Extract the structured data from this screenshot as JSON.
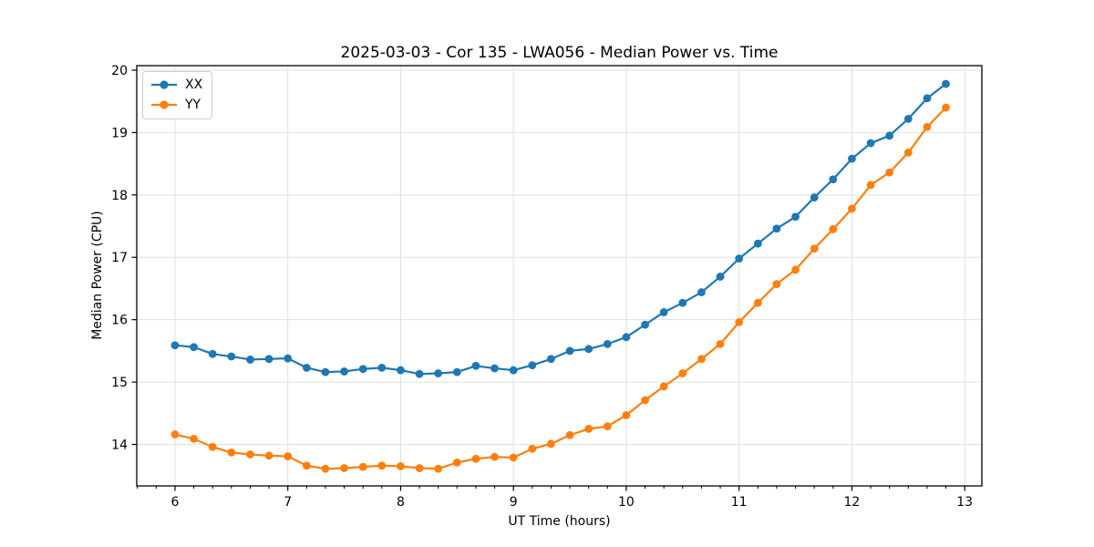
{
  "figure": {
    "title": "2025-03-03 - Cor 135 - LWA056 - Median Power vs. Time",
    "xlabel": "UT Time (hours)",
    "ylabel": "Median Power (CPU)"
  },
  "legend": {
    "position": "upper-left",
    "items": [
      {
        "label": "XX",
        "color": "#1f77b4"
      },
      {
        "label": "YY",
        "color": "#ff7f0e"
      }
    ]
  },
  "chart_data": {
    "type": "line",
    "title": "2025-03-03 - Cor 135 - LWA056 - Median Power vs. Time",
    "xlabel": "UT Time (hours)",
    "ylabel": "Median Power (CPU)",
    "xlim": [
      5.661,
      13.152
    ],
    "ylim": [
      13.335,
      20.073
    ],
    "xticks": [
      6,
      7,
      8,
      9,
      10,
      11,
      12,
      13
    ],
    "yticks": [
      14,
      15,
      16,
      17,
      18,
      19,
      20
    ],
    "x_minor_divisions": 6,
    "grid": true,
    "grid_color": "#e0e0e0",
    "marker": "circle",
    "x": [
      6.0,
      6.167,
      6.333,
      6.5,
      6.667,
      6.833,
      7.0,
      7.167,
      7.333,
      7.5,
      7.667,
      7.833,
      8.0,
      8.167,
      8.333,
      8.5,
      8.667,
      8.833,
      9.0,
      9.167,
      9.333,
      9.5,
      9.667,
      9.833,
      10.0,
      10.167,
      10.333,
      10.5,
      10.667,
      10.833,
      11.0,
      11.167,
      11.333,
      11.5,
      11.667,
      11.833,
      12.0,
      12.167,
      12.333,
      12.5,
      12.667,
      12.833
    ],
    "series": [
      {
        "name": "XX",
        "color": "#1f77b4",
        "values": [
          15.59,
          15.56,
          15.45,
          15.41,
          15.36,
          15.37,
          15.38,
          15.23,
          15.16,
          15.17,
          15.21,
          15.23,
          15.19,
          15.13,
          15.14,
          15.16,
          15.26,
          15.22,
          15.19,
          15.27,
          15.37,
          15.5,
          15.53,
          15.61,
          15.72,
          15.92,
          16.12,
          16.27,
          16.44,
          16.69,
          16.98,
          17.22,
          17.46,
          17.65,
          17.96,
          18.25,
          18.58,
          18.83,
          18.95,
          19.22,
          19.55,
          19.78
        ]
      },
      {
        "name": "YY",
        "color": "#ff7f0e",
        "values": [
          14.16,
          14.09,
          13.96,
          13.87,
          13.84,
          13.82,
          13.81,
          13.66,
          13.61,
          13.62,
          13.64,
          13.66,
          13.65,
          13.62,
          13.61,
          13.71,
          13.77,
          13.8,
          13.79,
          13.93,
          14.01,
          14.15,
          14.25,
          14.29,
          14.47,
          14.71,
          14.93,
          15.14,
          15.37,
          15.61,
          15.96,
          16.27,
          16.57,
          16.8,
          17.14,
          17.45,
          17.78,
          18.16,
          18.36,
          18.68,
          19.09,
          19.4
        ]
      }
    ]
  }
}
